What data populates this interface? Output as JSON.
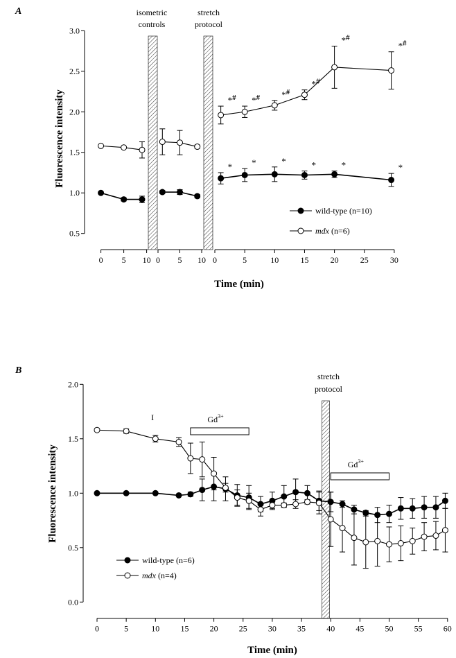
{
  "chart_data": [
    {
      "type": "line",
      "panel_label": "A",
      "xlabel": "Time (min)",
      "ylabel": "Fluorescence intensity",
      "ylim": [
        0.5,
        3.0
      ],
      "yticks": [
        "0.5",
        "1.0",
        "1.5",
        "2.0",
        "2.5",
        "3.0"
      ],
      "x_segments": [
        {
          "ticks": [
            "0",
            "5",
            "10"
          ],
          "range": [
            0,
            10
          ]
        },
        {
          "ticks": [
            "0",
            "5",
            "10"
          ],
          "range": [
            0,
            10
          ]
        },
        {
          "ticks": [
            "0",
            "5",
            "10",
            "15",
            "20",
            "25",
            "30"
          ],
          "range": [
            0,
            30
          ]
        }
      ],
      "shaded_regions": [
        {
          "label_lines": [
            "isometric",
            "controls"
          ]
        },
        {
          "label_lines": [
            "stretch",
            "protocol"
          ]
        }
      ],
      "grid": false,
      "legend_placement": "bottom-right",
      "series": [
        {
          "name": "wild-type (n=10)",
          "marker": "filled-circle",
          "points": [
            {
              "segment": 0,
              "x": 0,
              "y": 1.0,
              "err": 0.01
            },
            {
              "segment": 0,
              "x": 5,
              "y": 0.92,
              "err": 0.02
            },
            {
              "segment": 0,
              "x": 9,
              "y": 0.92,
              "err": 0.04
            },
            {
              "segment": 1,
              "x": 1,
              "y": 1.01,
              "err": 0.02
            },
            {
              "segment": 1,
              "x": 5,
              "y": 1.01,
              "err": 0.03
            },
            {
              "segment": 1,
              "x": 9,
              "y": 0.96,
              "err": 0.02
            },
            {
              "segment": 2,
              "x": 1,
              "y": 1.18,
              "err": 0.07,
              "mark": "*"
            },
            {
              "segment": 2,
              "x": 5,
              "y": 1.22,
              "err": 0.08,
              "mark": "*"
            },
            {
              "segment": 2,
              "x": 10,
              "y": 1.23,
              "err": 0.09,
              "mark": "*"
            },
            {
              "segment": 2,
              "x": 15,
              "y": 1.22,
              "err": 0.05,
              "mark": "*"
            },
            {
              "segment": 2,
              "x": 20,
              "y": 1.23,
              "err": 0.04,
              "mark": "*"
            },
            {
              "segment": 2,
              "x": 29.5,
              "y": 1.16,
              "err": 0.08,
              "mark": "*"
            }
          ]
        },
        {
          "name_italic": "mdx",
          "name": "(n=6)",
          "marker": "open-circle",
          "points": [
            {
              "segment": 0,
              "x": 0,
              "y": 1.58,
              "err": 0.01
            },
            {
              "segment": 0,
              "x": 5,
              "y": 1.56,
              "err": 0.01
            },
            {
              "segment": 0,
              "x": 9,
              "y": 1.53,
              "err": 0.1
            },
            {
              "segment": 1,
              "x": 1,
              "y": 1.63,
              "err": 0.16
            },
            {
              "segment": 1,
              "x": 5,
              "y": 1.62,
              "err": 0.15
            },
            {
              "segment": 1,
              "x": 9,
              "y": 1.57,
              "err": 0.02
            },
            {
              "segment": 2,
              "x": 1,
              "y": 1.96,
              "err": 0.11,
              "mark": "*#"
            },
            {
              "segment": 2,
              "x": 5,
              "y": 2.0,
              "err": 0.07,
              "mark": "*#"
            },
            {
              "segment": 2,
              "x": 10,
              "y": 2.08,
              "err": 0.06,
              "mark": "*#"
            },
            {
              "segment": 2,
              "x": 15,
              "y": 2.21,
              "err": 0.06,
              "mark": "*#"
            },
            {
              "segment": 2,
              "x": 20,
              "y": 2.55,
              "err": 0.26,
              "mark": "*#"
            },
            {
              "segment": 2,
              "x": 29.5,
              "y": 2.51,
              "err": 0.23,
              "mark": "*#"
            }
          ]
        }
      ]
    },
    {
      "type": "line",
      "panel_label": "B",
      "xlabel": "Time (min)",
      "ylabel": "Fluorescence intensity",
      "xlim": [
        0,
        60
      ],
      "ylim": [
        0.0,
        2.0
      ],
      "xticks": [
        "0",
        "5",
        "10",
        "15",
        "20",
        "25",
        "30",
        "35",
        "40",
        "45",
        "50",
        "55",
        "60"
      ],
      "yticks": [
        "0.0",
        "0.5",
        "1.0",
        "1.5",
        "2.0"
      ],
      "grid": false,
      "legend_placement": "bottom-left",
      "annotations": [
        {
          "text": "I",
          "x": 9.5
        },
        {
          "text": "Gd",
          "sup": "3+",
          "bar": [
            16,
            26
          ]
        },
        {
          "text": "Gd",
          "sup": "3+",
          "bar": [
            40,
            50
          ]
        }
      ],
      "shaded_regions": [
        {
          "label_lines": [
            "stretch",
            "protocol"
          ],
          "x": [
            38.5,
            39.8
          ]
        }
      ],
      "series": [
        {
          "name": "wild-type (n=6)",
          "marker": "filled-circle",
          "points": [
            [
              0,
              1.0,
              0
            ],
            [
              5,
              1.0,
              0
            ],
            [
              10,
              1.0,
              0
            ],
            [
              14,
              0.98,
              0
            ],
            [
              16,
              0.99,
              0.02
            ],
            [
              18,
              1.03,
              0.1
            ],
            [
              20,
              1.06,
              0.13
            ],
            [
              22,
              1.04,
              0.11
            ],
            [
              24,
              0.98,
              0.1
            ],
            [
              26,
              0.96,
              0.11
            ],
            [
              28,
              0.9,
              0.07
            ],
            [
              30,
              0.93,
              0.08
            ],
            [
              32,
              0.97,
              0.1
            ],
            [
              34,
              1.01,
              0.12
            ],
            [
              36,
              1.0,
              0.07
            ],
            [
              38,
              0.93,
              0.09
            ],
            [
              40,
              0.92,
              0.09
            ],
            [
              42,
              0.9,
              0.03
            ],
            [
              44,
              0.85,
              0.04
            ],
            [
              46,
              0.82,
              0.02
            ],
            [
              48,
              0.8,
              0.07
            ],
            [
              50,
              0.81,
              0.08
            ],
            [
              52,
              0.86,
              0.1
            ],
            [
              54,
              0.86,
              0.09
            ],
            [
              56,
              0.87,
              0.1
            ],
            [
              58,
              0.87,
              0.1
            ],
            [
              59.6,
              0.93,
              0.07
            ]
          ]
        },
        {
          "name_italic": "mdx",
          "name": "(n=4)",
          "marker": "open-circle",
          "points": [
            [
              0,
              1.58,
              0.01
            ],
            [
              5,
              1.57,
              0.02
            ],
            [
              10,
              1.5,
              0.03
            ],
            [
              14,
              1.47,
              0.04
            ],
            [
              16,
              1.32,
              0.14
            ],
            [
              18,
              1.31,
              0.16
            ],
            [
              20,
              1.18,
              0.15
            ],
            [
              22,
              1.05,
              0.04
            ],
            [
              24,
              0.96,
              0.07
            ],
            [
              26,
              0.93,
              0.07
            ],
            [
              28,
              0.85,
              0.06
            ],
            [
              30,
              0.89,
              0.03
            ],
            [
              32,
              0.89,
              0.02
            ],
            [
              34,
              0.9,
              0.04
            ],
            [
              36,
              0.92,
              0.02
            ],
            [
              38,
              0.91,
              0.1
            ],
            [
              40,
              0.76,
              0.25
            ],
            [
              42,
              0.68,
              0.22
            ],
            [
              44,
              0.59,
              0.25
            ],
            [
              46,
              0.55,
              0.24
            ],
            [
              48,
              0.56,
              0.23
            ],
            [
              50,
              0.53,
              0.16
            ],
            [
              52,
              0.54,
              0.16
            ],
            [
              54,
              0.56,
              0.12
            ],
            [
              56,
              0.6,
              0.13
            ],
            [
              58,
              0.61,
              0.13
            ],
            [
              59.6,
              0.66,
              0.2
            ]
          ]
        }
      ]
    }
  ]
}
